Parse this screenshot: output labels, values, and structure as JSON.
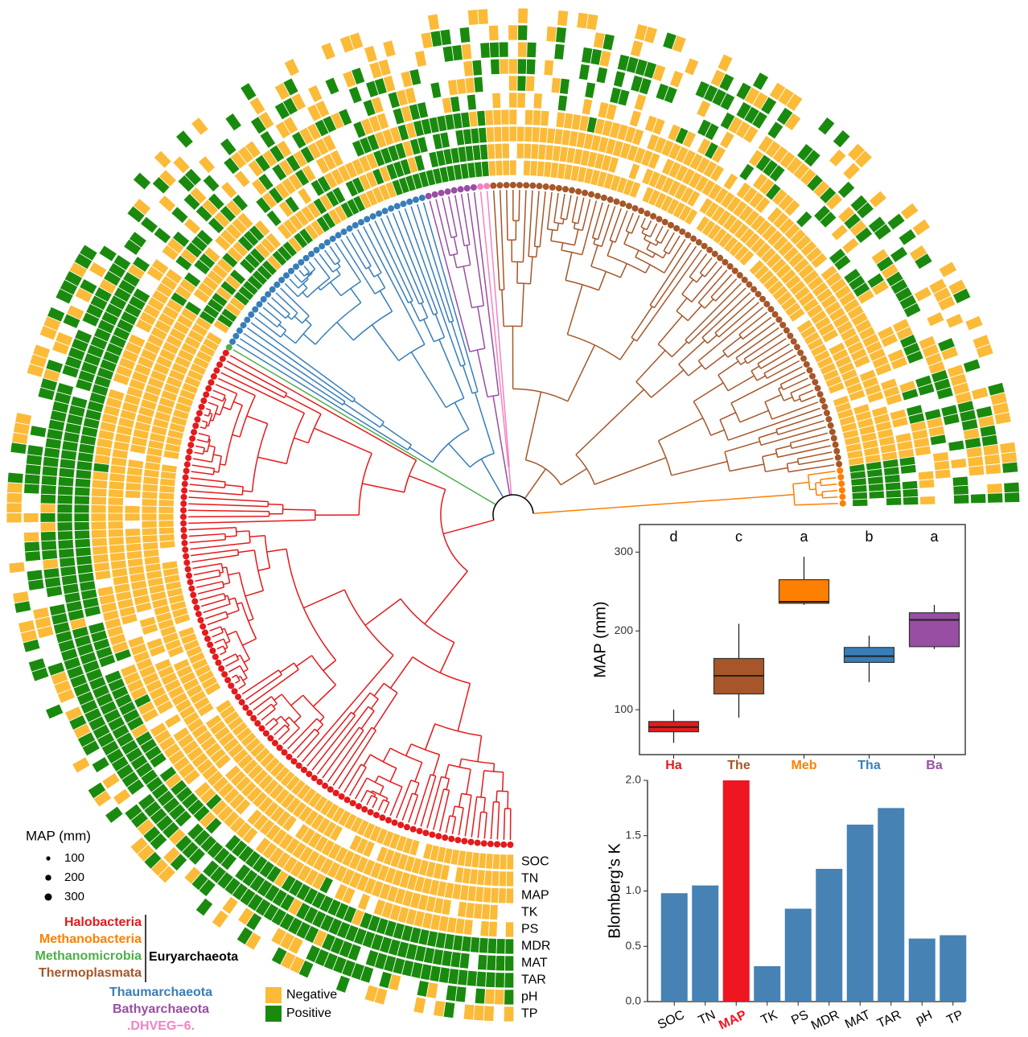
{
  "tree": {
    "clades": [
      {
        "name": "Halobacteria",
        "color": "#e41a1c"
      },
      {
        "name": "Methanobacteria",
        "color": "#ff7f00"
      },
      {
        "name": "Methanomicrobia",
        "color": "#4daf4a"
      },
      {
        "name": "Thermoplasmata",
        "color": "#a65628"
      },
      {
        "name": "Thaumarchaeota",
        "color": "#377eb8"
      },
      {
        "name": "Bathyarchaeota",
        "color": "#984ea3"
      },
      {
        "name": ".DHVEG−6.",
        "color": "#f781bf"
      }
    ],
    "phylum": "Euryarchaeota",
    "traits": [
      "SOC",
      "TN",
      "MAP",
      "TK",
      "PS",
      "MDR",
      "MAT",
      "TAR",
      "pH",
      "TP"
    ],
    "legend": [
      {
        "name": "Negative",
        "color": "#fbbb38"
      },
      {
        "name": "Positive",
        "color": "#1a8a0e"
      }
    ],
    "size_legend": {
      "title": "MAP (mm)",
      "values": [
        100,
        200,
        300
      ]
    }
  },
  "chart_data": [
    {
      "type": "box",
      "ylabel": "MAP (mm)",
      "categories": [
        "Ha",
        "The",
        "Meb",
        "Tha",
        "Ba"
      ],
      "colors": [
        "#e41a1c",
        "#a65628",
        "#ff7f00",
        "#377eb8",
        "#984ea3"
      ],
      "letters": [
        "d",
        "c",
        "a",
        "b",
        "a"
      ],
      "whisker_low": [
        58,
        90,
        233,
        135,
        177
      ],
      "q1": [
        72,
        120,
        235,
        160,
        180
      ],
      "median": [
        78,
        143,
        237,
        168,
        214
      ],
      "q3": [
        85,
        165,
        265,
        179,
        223
      ],
      "whisker_high": [
        100,
        209,
        294,
        194,
        233
      ],
      "ylim": [
        43,
        335
      ],
      "yticks": [
        100,
        200,
        300
      ]
    },
    {
      "type": "bar",
      "ylabel": "Blomberg’s K",
      "categories": [
        "SOC",
        "TN",
        "MAP",
        "TK",
        "PS",
        "MDR",
        "MAT",
        "TAR",
        "pH",
        "TP"
      ],
      "values": [
        0.98,
        1.05,
        2.0,
        0.32,
        0.84,
        1.2,
        1.6,
        1.75,
        0.57,
        0.6
      ],
      "colors": [
        "#4682b4",
        "#4682b4",
        "#ee1620",
        "#4682b4",
        "#4682b4",
        "#4682b4",
        "#4682b4",
        "#4682b4",
        "#4682b4",
        "#4682b4"
      ],
      "label_colors": [
        "#000000",
        "#000000",
        "#ee1620",
        "#000000",
        "#000000",
        "#000000",
        "#000000",
        "#000000",
        "#000000",
        "#000000"
      ],
      "ylim": [
        0,
        2.0
      ],
      "yticks": [
        {
          "value": 0,
          "label": "0.0"
        },
        {
          "value": 0.5,
          "label": "0.5"
        },
        {
          "value": 1.0,
          "label": "1.0"
        },
        {
          "value": 1.5,
          "label": "1.5"
        },
        {
          "value": 2.0,
          "label": "2.0"
        }
      ]
    }
  ]
}
